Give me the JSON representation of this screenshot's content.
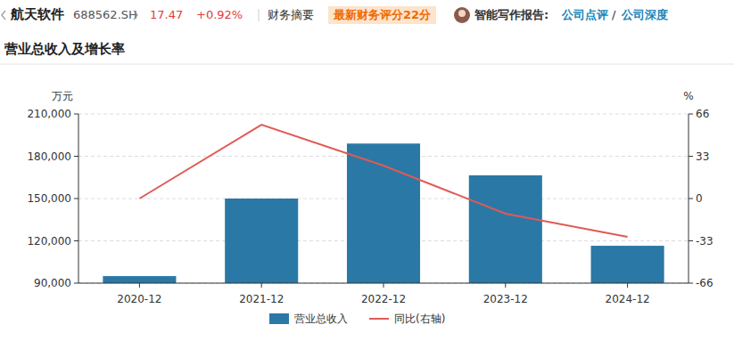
{
  "header": {
    "name": "航天软件",
    "code": "688562.SH",
    "price": "17.47",
    "change": "+0.92%",
    "tab": "财务摘要",
    "score": "最新财务评分22分",
    "report_label": "智能写作报告:",
    "links": [
      "公司点评",
      "/",
      "公司深度"
    ]
  },
  "chart_data": {
    "type": "bar",
    "title": "营业总收入及增长率",
    "ylabel": "万元",
    "y2label": "%",
    "categories": [
      "2020-12",
      "2021-12",
      "2022-12",
      "2023-12",
      "2024-12"
    ],
    "series": [
      {
        "name": "营业总收入",
        "type": "bar",
        "color": "#2a78a6",
        "values": [
          95000,
          150000,
          189000,
          166500,
          116500
        ]
      },
      {
        "name": "同比(右轴)",
        "type": "line",
        "axis": "y2",
        "color": "#e05a54",
        "values": [
          0,
          57.6,
          25.7,
          -11.8,
          -29.9
        ]
      }
    ],
    "ylim": [
      90000,
      210000
    ],
    "yticks": [
      {
        "value": 90000,
        "label": "90,000"
      },
      {
        "value": 120000,
        "label": "120,000"
      },
      {
        "value": 150000,
        "label": "150,000"
      },
      {
        "value": 180000,
        "label": "180,000"
      },
      {
        "value": 210000,
        "label": "210,000"
      }
    ],
    "y2lim": [
      -66,
      66
    ],
    "y2ticks": [
      -66,
      -33,
      0,
      33,
      66
    ],
    "grid": true,
    "legend": "bottom"
  }
}
